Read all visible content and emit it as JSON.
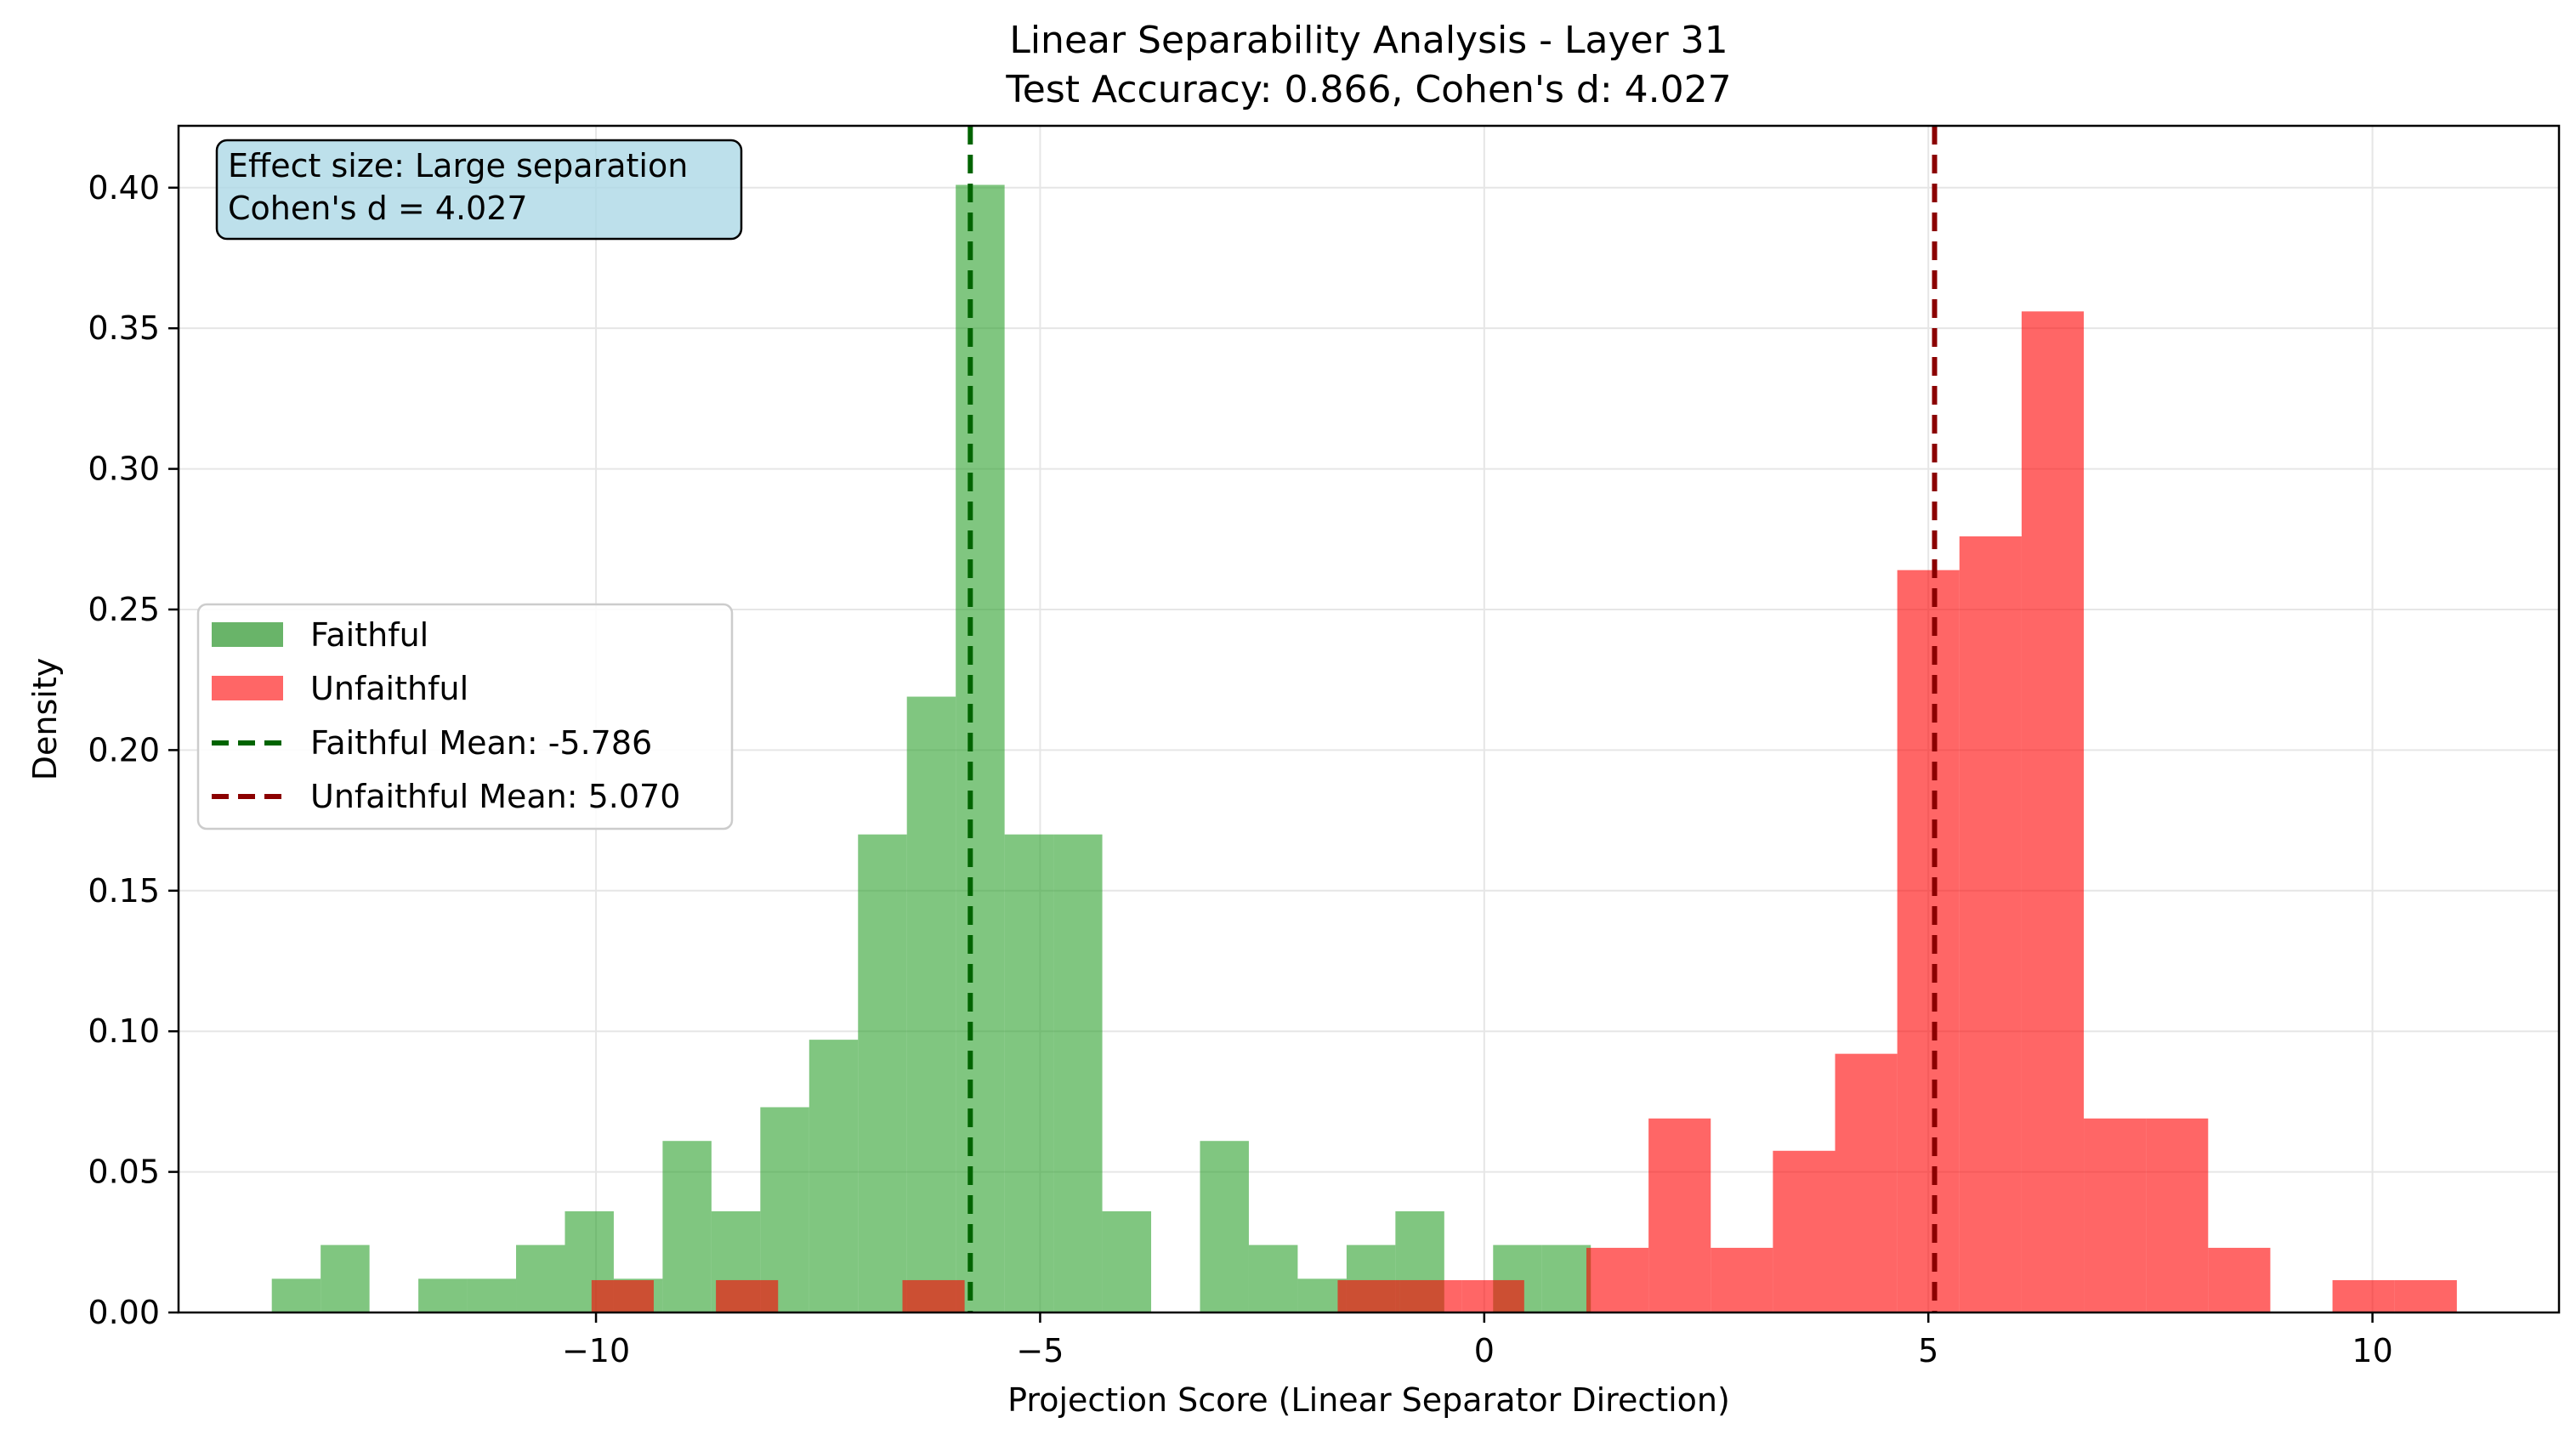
{
  "chart_data": {
    "type": "histogram",
    "title": "Linear Separability Analysis - Layer 31",
    "subtitle": "Test Accuracy: 0.866, Cohen's d: 4.027",
    "xlabel": "Projection Score (Linear Separator Direction)",
    "ylabel": "Density",
    "xlim": [
      -14.7,
      12.1
    ],
    "ylim": [
      0,
      0.422
    ],
    "xticks": [
      -10,
      -5,
      0,
      5,
      10
    ],
    "xtick_labels": [
      "−10",
      "−5",
      "0",
      "5",
      "10"
    ],
    "yticks": [
      0.0,
      0.05,
      0.1,
      0.15,
      0.2,
      0.25,
      0.3,
      0.35,
      0.4
    ],
    "ytick_labels": [
      "0.00",
      "0.05",
      "0.10",
      "0.15",
      "0.20",
      "0.25",
      "0.30",
      "0.35",
      "0.40"
    ],
    "grid": true,
    "legend_position": "center-left",
    "annotation": {
      "line1": "Effect size: Large separation",
      "line2": "Cohen's d = 4.027"
    },
    "series": [
      {
        "name": "Faithful",
        "color": "#2ca02c",
        "display_color": "#69b469",
        "bins": [
          {
            "x0": -13.65,
            "x1": -13.1,
            "y": 0.012
          },
          {
            "x0": -13.1,
            "x2": 0,
            "x1": -12.55,
            "y": 0.024
          },
          {
            "x0": -12.0,
            "x1": -11.45,
            "y": 0.012
          },
          {
            "x0": -11.45,
            "x1": -10.9,
            "y": 0.012
          },
          {
            "x0": -10.9,
            "x1": -10.35,
            "y": 0.024
          },
          {
            "x0": -10.35,
            "x1": -9.8,
            "y": 0.036
          },
          {
            "x0": -9.8,
            "x1": -9.25,
            "y": 0.012
          },
          {
            "x0": -9.25,
            "x1": -8.7,
            "y": 0.061
          },
          {
            "x0": -8.7,
            "x1": -8.15,
            "y": 0.036
          },
          {
            "x0": -8.15,
            "x1": -7.6,
            "y": 0.073
          },
          {
            "x0": -7.6,
            "x1": -7.05,
            "y": 0.097
          },
          {
            "x0": -7.05,
            "x1": -6.5,
            "y": 0.17
          },
          {
            "x0": -6.5,
            "x1": -5.95,
            "y": 0.219
          },
          {
            "x0": -5.95,
            "x1": -5.4,
            "y": 0.401
          },
          {
            "x0": -5.4,
            "x1": -4.85,
            "y": 0.17
          },
          {
            "x0": -4.85,
            "x1": -4.3,
            "y": 0.17
          },
          {
            "x0": -4.3,
            "x1": -3.75,
            "y": 0.036
          },
          {
            "x0": -3.2,
            "x1": -2.65,
            "y": 0.061
          },
          {
            "x0": -2.65,
            "x1": -2.1,
            "y": 0.024
          },
          {
            "x0": -2.1,
            "x1": -1.55,
            "y": 0.012
          },
          {
            "x0": -1.55,
            "x1": -1.0,
            "y": 0.024
          },
          {
            "x0": -1.0,
            "x1": -0.45,
            "y": 0.036
          },
          {
            "x0": 0.1,
            "x1": 0.65,
            "y": 0.024
          },
          {
            "x0": 0.65,
            "x1": 1.2,
            "y": 0.024
          }
        ],
        "mean": -5.786,
        "mean_label": "Faithful Mean: -5.786",
        "mean_color": "#006400"
      },
      {
        "name": "Unfaithful",
        "color": "#ff0000",
        "display_color": "#ff6666",
        "bins": [
          {
            "x0": -10.05,
            "x1": -9.35,
            "y": 0.0115
          },
          {
            "x0": -8.65,
            "x1": -7.95,
            "y": 0.0115
          },
          {
            "x0": -6.55,
            "x1": -5.85,
            "y": 0.0115
          },
          {
            "x0": -1.65,
            "x1": -0.95,
            "y": 0.0115
          },
          {
            "x0": -0.95,
            "x1": -0.25,
            "y": 0.0115
          },
          {
            "x0": -0.25,
            "x1": 0.45,
            "y": 0.0115
          },
          {
            "x0": 1.15,
            "x1": 1.85,
            "y": 0.023
          },
          {
            "x0": 1.85,
            "x1": 2.55,
            "y": 0.069
          },
          {
            "x0": 2.55,
            "x1": 3.25,
            "y": 0.023
          },
          {
            "x0": 3.25,
            "x1": 3.95,
            "y": 0.0575
          },
          {
            "x0": 3.95,
            "x1": 4.65,
            "y": 0.092
          },
          {
            "x0": 4.65,
            "x1": 5.35,
            "y": 0.264
          },
          {
            "x0": 5.35,
            "x1": 6.05,
            "y": 0.276
          },
          {
            "x0": 6.05,
            "x1": 6.75,
            "y": 0.356
          },
          {
            "x0": 6.75,
            "x1": 7.45,
            "y": 0.069
          },
          {
            "x0": 7.45,
            "x1": 8.15,
            "y": 0.069
          },
          {
            "x0": 8.15,
            "x1": 8.85,
            "y": 0.023
          },
          {
            "x0": 9.55,
            "x1": 10.25,
            "y": 0.0115
          },
          {
            "x0": 10.25,
            "x1": 10.95,
            "y": 0.0115
          }
        ],
        "mean": 5.07,
        "mean_label": "Unfaithful Mean: 5.070",
        "mean_color": "#8b0000"
      }
    ]
  }
}
